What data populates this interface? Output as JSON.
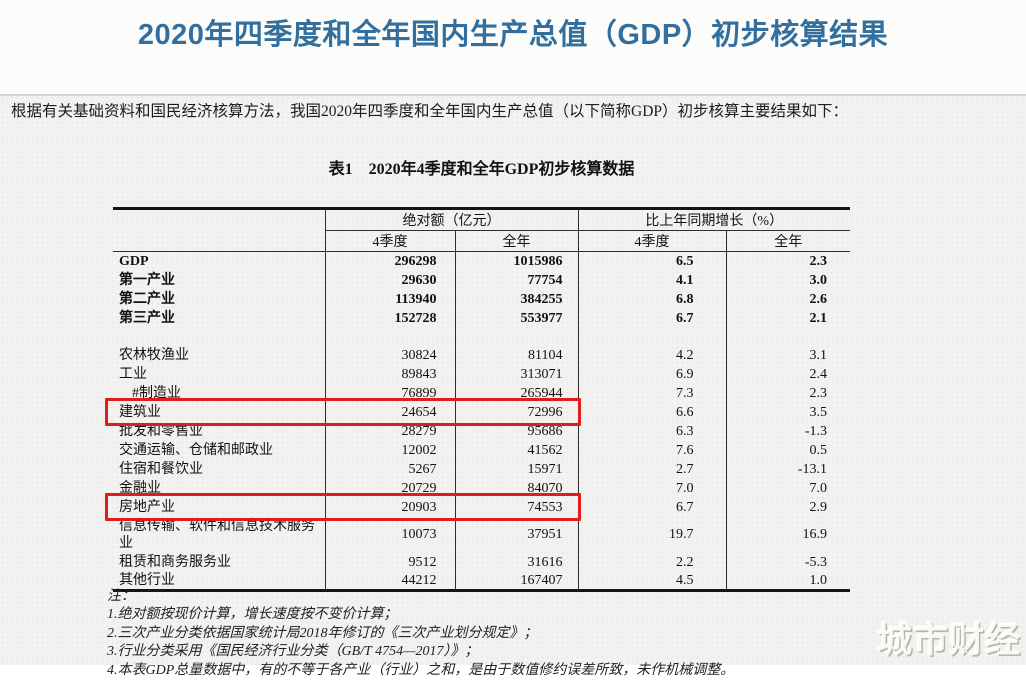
{
  "page": {
    "title": "2020年四季度和全年国内生产总值（GDP）初步核算结果",
    "intro": "根据有关基础资料和国民经济核算方法，我国2020年四季度和全年国内生产总值（以下简称GDP）初步核算主要结果如下：",
    "watermark": "城市财经"
  },
  "table": {
    "caption": "表1　2020年4季度和全年GDP初步核算数据",
    "col_groups": [
      {
        "label": "绝对额（亿元）"
      },
      {
        "label": "比上年同期增长（%）"
      }
    ],
    "sub_headers": [
      "4季度",
      "全年",
      "4季度",
      "全年"
    ],
    "highlight_color": "#dd1e1c",
    "rows": [
      {
        "label": "GDP",
        "q4_abs": "296298",
        "year_abs": "1015986",
        "q4_growth": "6.5",
        "year_growth": "2.3",
        "bold": true
      },
      {
        "label": "第一产业",
        "q4_abs": "29630",
        "year_abs": "77754",
        "q4_growth": "4.1",
        "year_growth": "3.0",
        "bold": true
      },
      {
        "label": "第二产业",
        "q4_abs": "113940",
        "year_abs": "384255",
        "q4_growth": "6.8",
        "year_growth": "2.6",
        "bold": true
      },
      {
        "label": "第三产业",
        "q4_abs": "152728",
        "year_abs": "553977",
        "q4_growth": "6.7",
        "year_growth": "2.1",
        "bold": true
      },
      {
        "spacer": true
      },
      {
        "label": "农林牧渔业",
        "q4_abs": "30824",
        "year_abs": "81104",
        "q4_growth": "4.2",
        "year_growth": "3.1"
      },
      {
        "label": "工业",
        "q4_abs": "89843",
        "year_abs": "313071",
        "q4_growth": "6.9",
        "year_growth": "2.4"
      },
      {
        "label": "#制造业",
        "q4_abs": "76899",
        "year_abs": "265944",
        "q4_growth": "7.3",
        "year_growth": "2.3",
        "indent": true
      },
      {
        "label": "建筑业",
        "q4_abs": "24654",
        "year_abs": "72996",
        "q4_growth": "6.6",
        "year_growth": "3.5",
        "highlight": true
      },
      {
        "label": "批发和零售业",
        "q4_abs": "28279",
        "year_abs": "95686",
        "q4_growth": "6.3",
        "year_growth": "-1.3"
      },
      {
        "label": "交通运输、仓储和邮政业",
        "q4_abs": "12002",
        "year_abs": "41562",
        "q4_growth": "7.6",
        "year_growth": "0.5"
      },
      {
        "label": "住宿和餐饮业",
        "q4_abs": "5267",
        "year_abs": "15971",
        "q4_growth": "2.7",
        "year_growth": "-13.1"
      },
      {
        "label": "金融业",
        "q4_abs": "20729",
        "year_abs": "84070",
        "q4_growth": "7.0",
        "year_growth": "7.0"
      },
      {
        "label": "房地产业",
        "q4_abs": "20903",
        "year_abs": "74553",
        "q4_growth": "6.7",
        "year_growth": "2.9",
        "highlight": true
      },
      {
        "label": "信息传输、软件和信息技术服务业",
        "q4_abs": "10073",
        "year_abs": "37951",
        "q4_growth": "19.7",
        "year_growth": "16.9",
        "wrap": true
      },
      {
        "label": "租赁和商务服务业",
        "q4_abs": "9512",
        "year_abs": "31616",
        "q4_growth": "2.2",
        "year_growth": "-5.3"
      },
      {
        "label": "其他行业",
        "q4_abs": "44212",
        "year_abs": "167407",
        "q4_growth": "4.5",
        "year_growth": "1.0"
      }
    ]
  },
  "notes": {
    "label": "注：",
    "items": [
      "1.绝对额按现价计算，增长速度按不变价计算；",
      "2.三次产业分类依据国家统计局2018年修订的《三次产业划分规定》；",
      "3.行业分类采用《国民经济行业分类（GB/T 4754—2017）》；",
      "4.本表GDP总量数据中，有的不等于各产业（行业）之和，是由于数值修约误差所致，未作机械调整。"
    ]
  }
}
